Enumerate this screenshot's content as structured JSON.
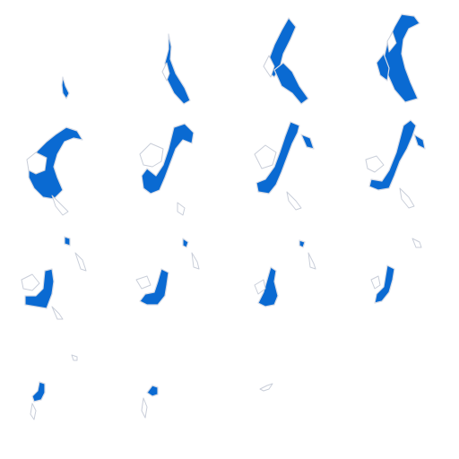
{
  "sprite_sheet": {
    "grid": {
      "columns": 4,
      "rows": 4
    },
    "fill_color": "#0a6ad2",
    "outline_color": "#d6dbe6",
    "background": "#ffffff",
    "frames": [
      {
        "index": 1,
        "visible": true
      },
      {
        "index": 2,
        "visible": true
      },
      {
        "index": 3,
        "visible": true
      },
      {
        "index": 4,
        "visible": true
      },
      {
        "index": 5,
        "visible": true
      },
      {
        "index": 6,
        "visible": true
      },
      {
        "index": 7,
        "visible": true
      },
      {
        "index": 8,
        "visible": true
      },
      {
        "index": 9,
        "visible": true
      },
      {
        "index": 10,
        "visible": true
      },
      {
        "index": 11,
        "visible": true
      },
      {
        "index": 12,
        "visible": true
      },
      {
        "index": 13,
        "visible": true
      },
      {
        "index": 14,
        "visible": true
      },
      {
        "index": 15,
        "visible": true
      },
      {
        "index": 16,
        "visible": false
      }
    ]
  }
}
